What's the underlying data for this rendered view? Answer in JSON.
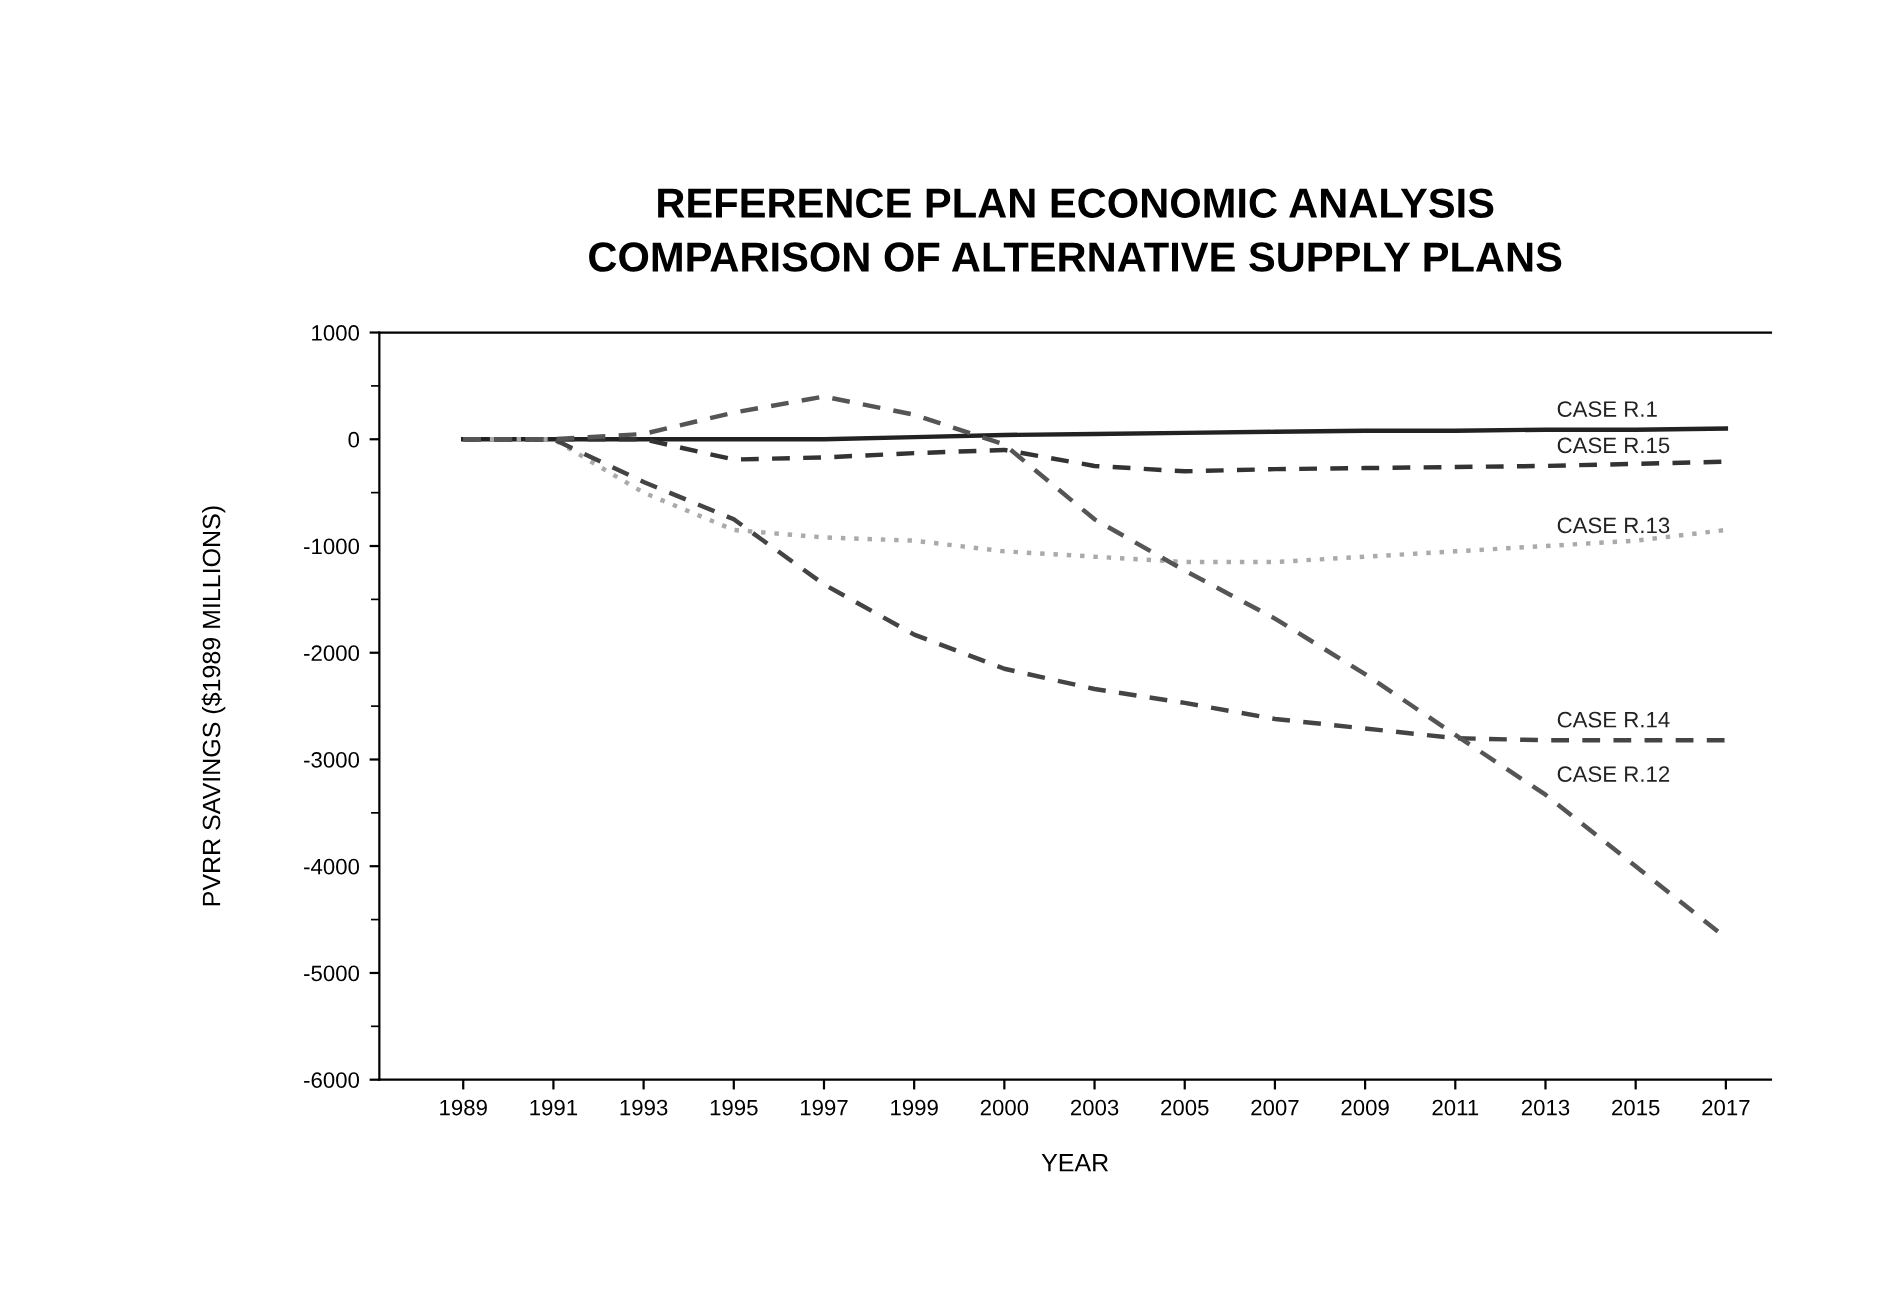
{
  "chart_data": {
    "type": "line",
    "title": "REFERENCE PLAN ECONOMIC ANALYSIS\nCOMPARISON OF ALTERNATIVE SUPPLY PLANS",
    "xlabel": "YEAR",
    "ylabel": "PVRR SAVINGS ($1989 MILLIONS)",
    "categories": [
      "1989",
      "1991",
      "1993",
      "1995",
      "1997",
      "1999",
      "2000",
      "2003",
      "2005",
      "2007",
      "2009",
      "2011",
      "2013",
      "2015",
      "2017"
    ],
    "ylim": [
      -6000,
      1000
    ],
    "yticks": [
      -6000,
      -5000,
      -4000,
      -3000,
      -2000,
      -1000,
      0,
      1000
    ],
    "grid": false,
    "legend": false,
    "marker": "none",
    "series": [
      {
        "name": "CASE R.1",
        "color": "#222222",
        "line_style": "solid",
        "values": [
          0,
          0,
          0,
          0,
          0,
          20,
          40,
          50,
          60,
          70,
          80,
          80,
          90,
          90,
          100
        ]
      },
      {
        "name": "CASE R.15",
        "color": "#333333",
        "line_style": "dashed",
        "values": [
          0,
          0,
          0,
          -190,
          -170,
          -130,
          -100,
          -250,
          -300,
          -280,
          -270,
          -260,
          -250,
          -230,
          -210
        ]
      },
      {
        "name": "CASE R.13",
        "color": "#aaaaaa",
        "line_style": "dotted",
        "values": [
          0,
          0,
          -500,
          -850,
          -920,
          -950,
          -1050,
          -1100,
          -1150,
          -1150,
          -1100,
          -1050,
          -1000,
          -950,
          -850
        ]
      },
      {
        "name": "CASE R.14",
        "color": "#444444",
        "line_style": "dashed",
        "values": [
          0,
          0,
          -400,
          -750,
          -1360,
          -1830,
          -2150,
          -2340,
          -2470,
          -2620,
          -2710,
          -2800,
          -2820,
          -2820,
          -2820
        ]
      },
      {
        "name": "CASE R.12",
        "color": "#555555",
        "line_style": "dashed",
        "values": [
          0,
          0,
          50,
          250,
          400,
          230,
          -50,
          -750,
          -1230,
          -1680,
          -2200,
          -2770,
          -3330,
          -4000,
          -4670
        ]
      }
    ]
  }
}
